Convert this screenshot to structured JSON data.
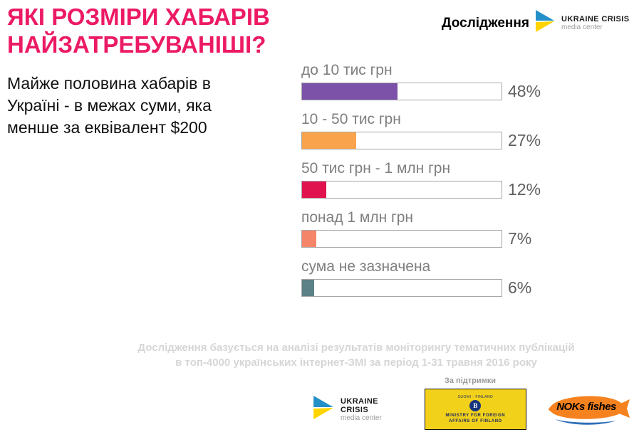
{
  "colors": {
    "accent_pink": "#EC1A65",
    "label_gray": "#7f7f7f",
    "note_gray": "#d6d6d6"
  },
  "header": {
    "title_line1": "ЯКІ РОЗМІРИ ХАБАРІВ",
    "title_line2": "НАЙЗАТРЕБУВАНІШІ?",
    "research_label": "Дослідження",
    "brand": {
      "line1": "UKRAINE CRISIS",
      "line2": "media center"
    }
  },
  "intro_text": "Майже половина хабарів в Україні - в межах суми, яка менше за еквівалент $200",
  "chart_data": {
    "type": "bar",
    "orientation": "horizontal",
    "categories": [
      "до 10 тис грн",
      "10 - 50 тис грн",
      "50 тис грн - 1 млн грн",
      "понад 1 млн грн",
      "сума не зазначена"
    ],
    "values": [
      48,
      27,
      12,
      7,
      6
    ],
    "value_labels": [
      "48%",
      "27%",
      "12%",
      "7%",
      "6%"
    ],
    "colors": [
      "#7B52A8",
      "#F9A34C",
      "#E0134F",
      "#F58569",
      "#5C8186"
    ],
    "xlim": [
      0,
      100
    ],
    "track_outline": "#a6a6a6",
    "title": "ЯКІ РОЗМІРИ ХАБАРІВ НАЙЗАТРЕБУВАНІШІ?"
  },
  "footer": {
    "note_line1": "Дослідження базується на аналізі результатів моніторингу тематичних публікацій",
    "note_line2": "в топ-4000 українських інтернет-ЗМІ за період 1-31 травня 2016 року",
    "support_label": "За підтримки",
    "logos": {
      "ucmc": {
        "line1": "UKRAINE CRISIS",
        "line2": "media center"
      },
      "finland": {
        "top": "SUOMI · FINLAND",
        "line1": "MINISTRY FOR FOREIGN",
        "line2": "AFFAIRS OF FINLAND"
      },
      "noks": {
        "label": "NOKs fishes"
      }
    }
  }
}
